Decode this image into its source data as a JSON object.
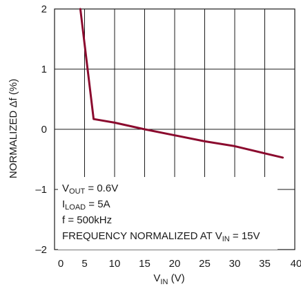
{
  "chart_data": {
    "type": "line",
    "xlabel": {
      "main": "V",
      "sub": "IN",
      "unit": " (V)"
    },
    "ylabel": "NORMALIZED Δf (%)",
    "xlim": [
      0,
      40
    ],
    "ylim": [
      -2,
      2
    ],
    "x_ticks": [
      "0",
      "5",
      "10",
      "15",
      "20",
      "25",
      "30",
      "35",
      "40"
    ],
    "y_ticks": [
      "2",
      "1",
      "0",
      "–1",
      "–2"
    ],
    "grid": true,
    "series": [
      {
        "color": "#8b0a2e",
        "x": [
          4.3,
          6.5,
          10,
          15,
          20,
          25,
          30,
          35,
          38
        ],
        "y": [
          2.0,
          0.17,
          0.11,
          0.0,
          -0.1,
          -0.2,
          -0.28,
          -0.4,
          -0.47
        ]
      }
    ],
    "annotations": {
      "line1": {
        "main": "V",
        "sub": "OUT",
        "rest": " = 0.6V"
      },
      "line2": {
        "main": "I",
        "sub": "LOAD",
        "rest": " = 5A"
      },
      "line3": "f = 500kHz",
      "line4": {
        "main": "FREQUENCY NORMALIZED AT V",
        "sub": "IN",
        "rest": " = 15V"
      }
    }
  }
}
